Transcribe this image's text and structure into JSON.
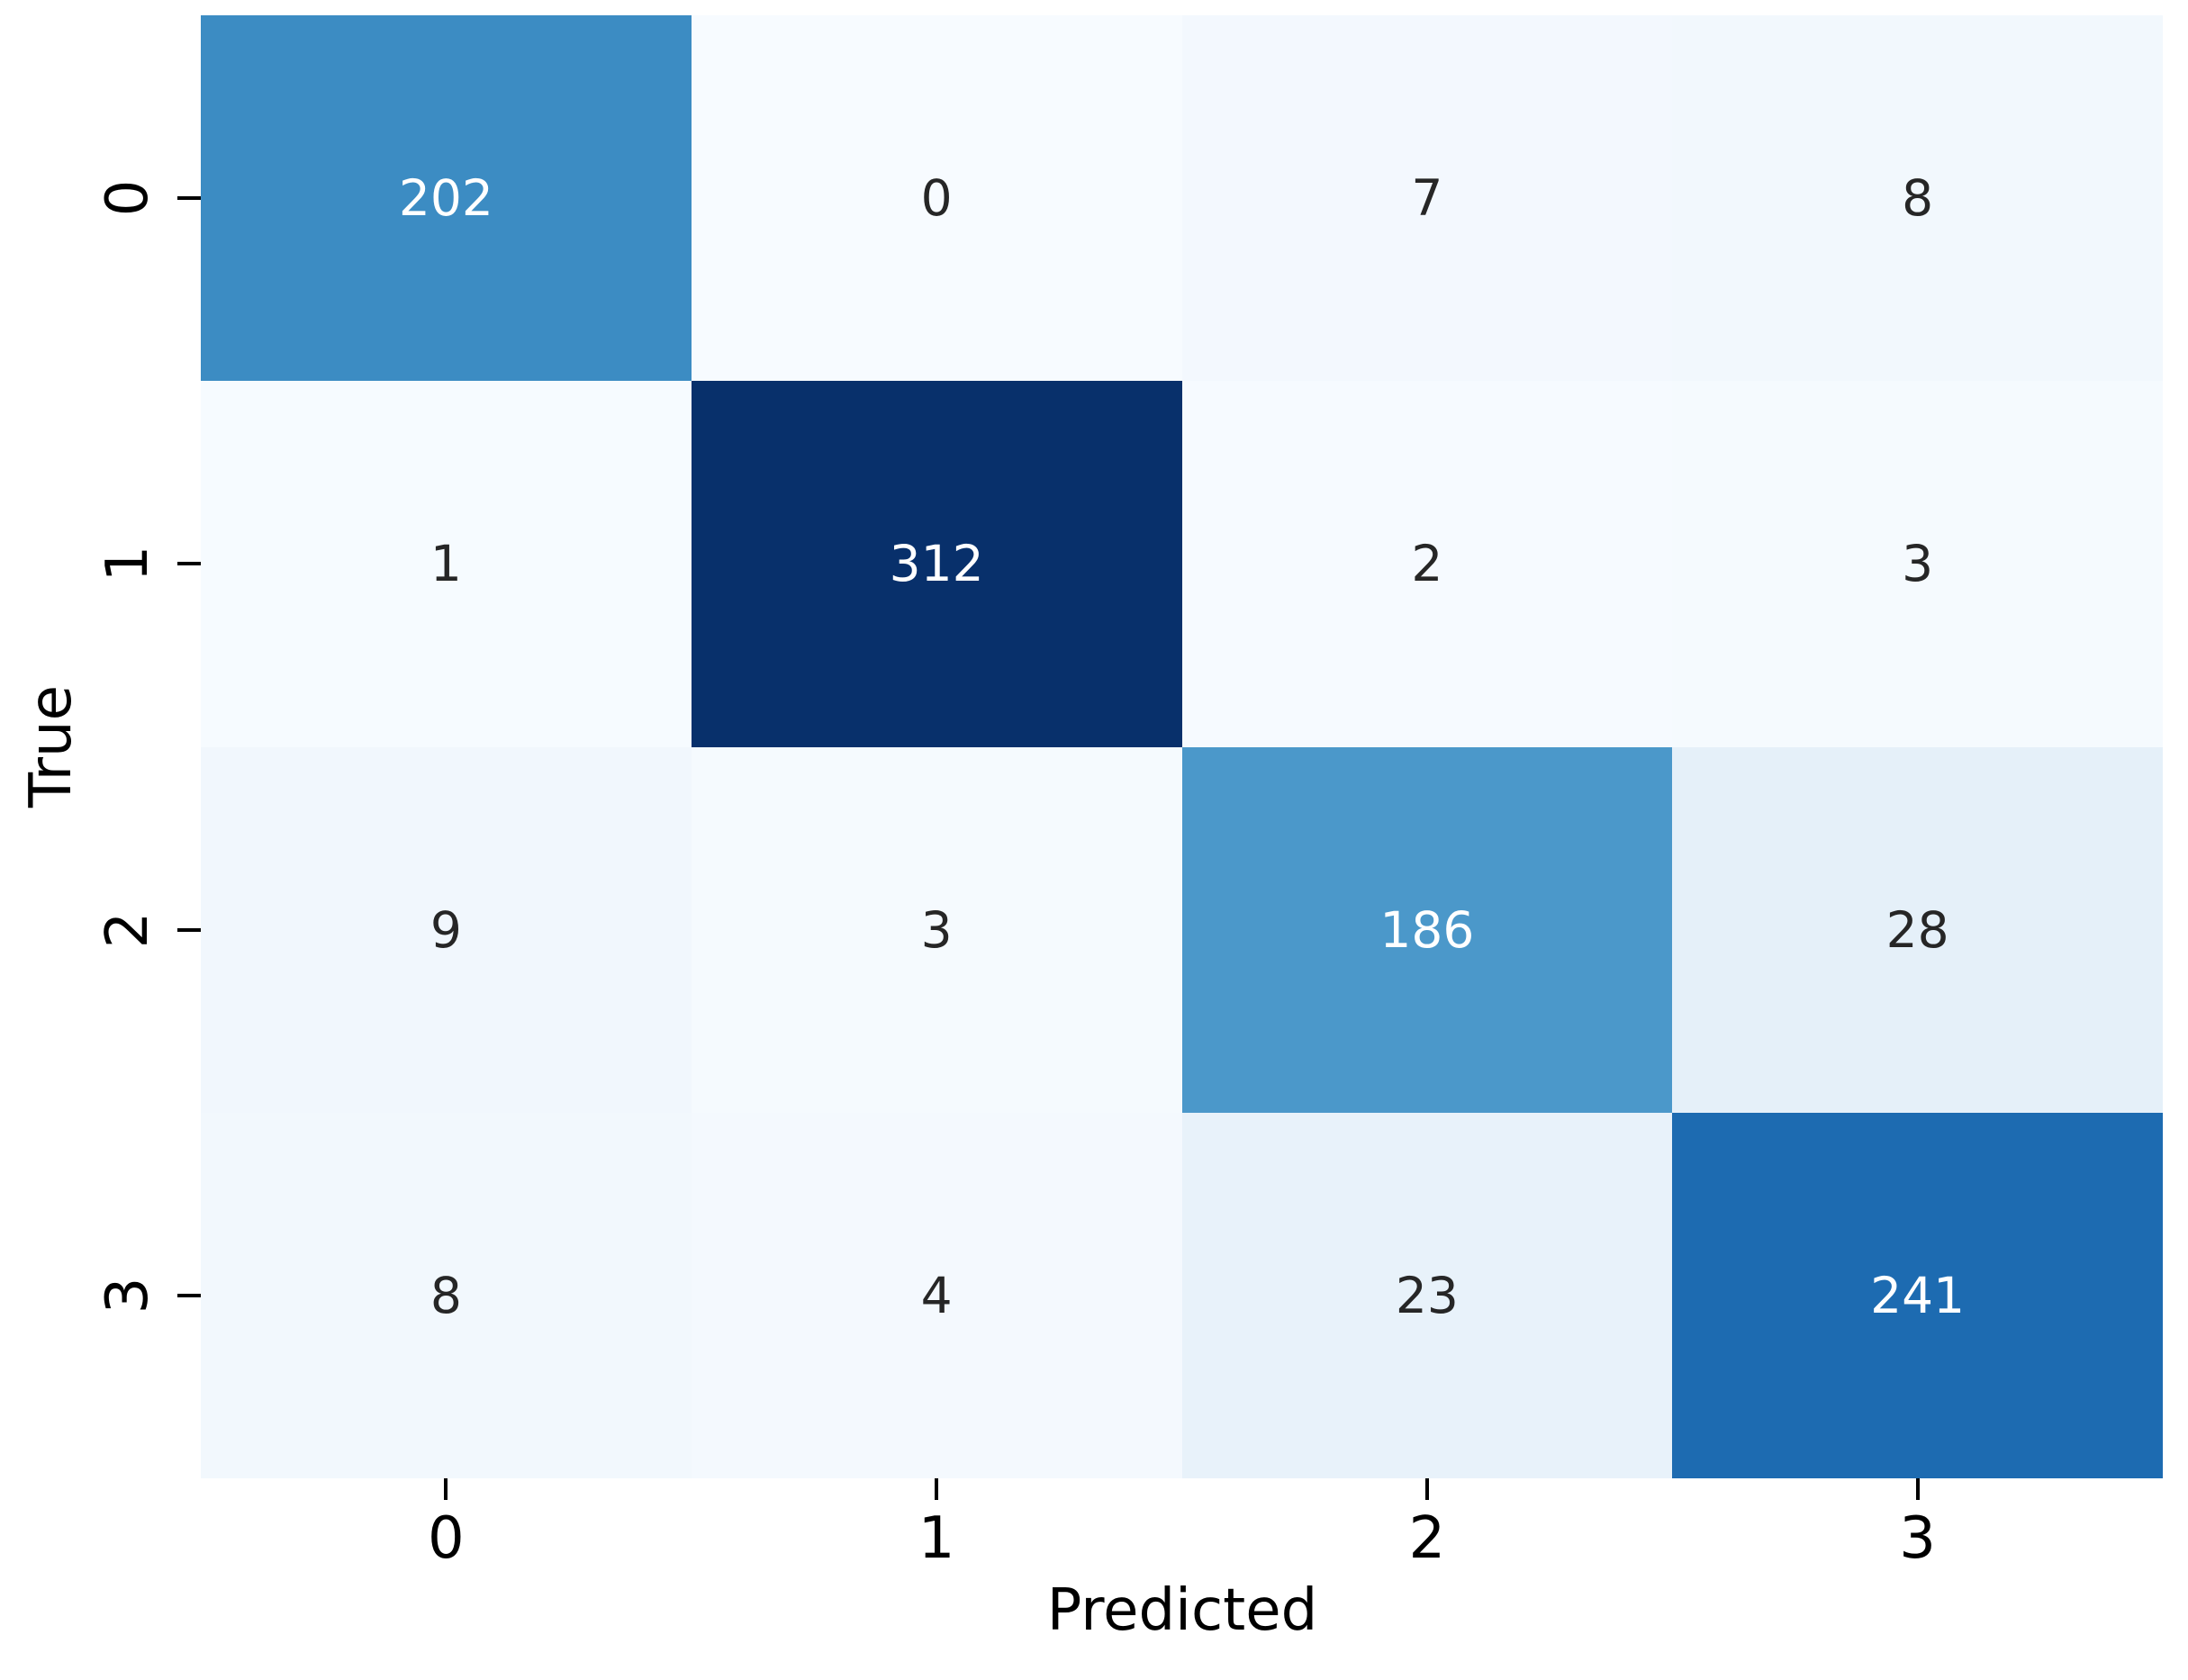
{
  "figure": {
    "background": "#ffffff",
    "axis_text_color": "#000000"
  },
  "chart_data": {
    "type": "heatmap",
    "title": "",
    "xlabel": "Predicted",
    "ylabel": "True",
    "x_tick_labels": [
      "0",
      "1",
      "2",
      "3"
    ],
    "y_tick_labels": [
      "0",
      "1",
      "2",
      "3"
    ],
    "matrix": [
      [
        202,
        0,
        7,
        8
      ],
      [
        1,
        312,
        2,
        3
      ],
      [
        9,
        3,
        186,
        28
      ],
      [
        8,
        4,
        23,
        241
      ]
    ],
    "vmin": 0,
    "vmax": 312,
    "colormap": "Blues",
    "colormap_anchors": [
      "#f7fbff",
      "#deebf7",
      "#c6dbef",
      "#9ecae1",
      "#6baed6",
      "#4292c6",
      "#2171b5",
      "#08519c",
      "#08306b"
    ],
    "annotation_color_dark": "#262626",
    "annotation_color_light": "#ffffff",
    "legend": "none",
    "grid": false
  }
}
